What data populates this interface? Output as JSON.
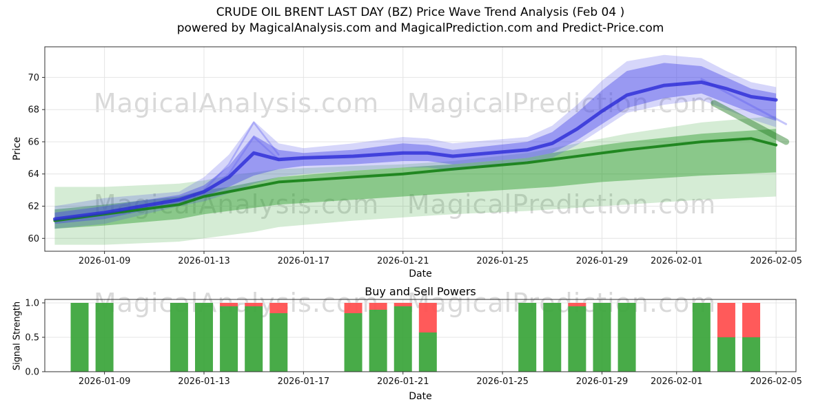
{
  "header": {
    "title_line1": "CRUDE OIL BRENT LAST DAY (BZ) Price Wave Trend Analysis (Feb 04 )",
    "title_line2": "powered by MagicalAnalysis.com and MagicalPrediction.com and Predict-Price.com"
  },
  "watermarks": {
    "analysis": "MagicalAnalysis.com",
    "prediction": "MagicalPrediction.com"
  },
  "chart_data": [
    {
      "type": "area",
      "title": "CRUDE OIL BRENT LAST DAY (BZ) Price Wave Trend Analysis (Feb 04 )",
      "xlabel": "Date",
      "ylabel": "Price",
      "x_base_date": "2026-01-07",
      "xlim_days": [
        -0.4,
        29.8
      ],
      "ylim": [
        59.2,
        71.9
      ],
      "grid": true,
      "yticks": [
        {
          "v": 60,
          "label": "60"
        },
        {
          "v": 62,
          "label": "62"
        },
        {
          "v": 64,
          "label": "64"
        },
        {
          "v": 66,
          "label": "66"
        },
        {
          "v": 68,
          "label": "68"
        },
        {
          "v": 70,
          "label": "70"
        }
      ],
      "xticks": [
        {
          "day": 2,
          "label": "2026-01-09"
        },
        {
          "day": 6,
          "label": "2026-01-13"
        },
        {
          "day": 10,
          "label": "2026-01-17"
        },
        {
          "day": 14,
          "label": "2026-01-21"
        },
        {
          "day": 18,
          "label": "2026-01-25"
        },
        {
          "day": 22,
          "label": "2026-01-29"
        },
        {
          "day": 25,
          "label": "2026-02-01"
        },
        {
          "day": 29,
          "label": "2026-02-05"
        }
      ],
      "bands": [
        {
          "name": "green-outer-band",
          "color": "#2f9e2f",
          "opacity": 0.2,
          "days": [
            0,
            2,
            5,
            6,
            7,
            8,
            9,
            12,
            14,
            16,
            19,
            20,
            22,
            23,
            26,
            29
          ],
          "low": [
            59.6,
            59.6,
            59.8,
            60.0,
            60.2,
            60.4,
            60.7,
            61.1,
            61.3,
            61.5,
            61.7,
            61.8,
            62.0,
            62.1,
            62.4,
            62.6
          ],
          "high": [
            63.2,
            63.2,
            63.4,
            63.6,
            63.9,
            64.1,
            64.3,
            64.5,
            64.6,
            64.8,
            65.3,
            65.6,
            66.2,
            66.5,
            67.2,
            67.6
          ]
        },
        {
          "name": "green-inner-band",
          "color": "#2f9e2f",
          "opacity": 0.45,
          "days": [
            0,
            2,
            5,
            6,
            7,
            8,
            9,
            12,
            14,
            16,
            19,
            20,
            22,
            23,
            26,
            29
          ],
          "low": [
            60.6,
            60.8,
            61.2,
            61.5,
            61.7,
            61.9,
            62.1,
            62.4,
            62.6,
            62.8,
            63.1,
            63.2,
            63.5,
            63.6,
            63.9,
            64.1
          ],
          "high": [
            61.8,
            62.1,
            62.6,
            63.0,
            63.2,
            63.5,
            63.8,
            64.2,
            64.4,
            64.6,
            65.0,
            65.3,
            65.8,
            66.0,
            66.5,
            66.8
          ]
        },
        {
          "name": "blue-outer-band",
          "color": "#4646e8",
          "opacity": 0.22,
          "days": [
            0,
            2,
            5,
            6,
            7,
            8,
            9,
            10,
            12,
            14,
            15,
            16,
            19,
            20,
            21,
            22,
            23,
            24.5,
            26,
            27,
            28,
            29
          ],
          "low": [
            60.6,
            60.9,
            62.0,
            62.3,
            62.8,
            63.4,
            63.8,
            64.0,
            64.2,
            64.4,
            64.4,
            64.2,
            64.7,
            65.0,
            65.8,
            66.8,
            67.8,
            68.3,
            68.6,
            68.0,
            67.4,
            66.9
          ],
          "high": [
            62.0,
            62.5,
            62.9,
            63.8,
            65.2,
            67.3,
            65.9,
            65.6,
            65.9,
            66.3,
            66.2,
            65.9,
            66.3,
            67.0,
            68.3,
            69.8,
            71.0,
            71.4,
            71.2,
            70.4,
            69.7,
            69.4
          ]
        },
        {
          "name": "blue-inner-band",
          "color": "#4646e8",
          "opacity": 0.42,
          "days": [
            0,
            2,
            5,
            6,
            7,
            8,
            9,
            10,
            12,
            14,
            15,
            16,
            19,
            20,
            21,
            22,
            23,
            24.5,
            26,
            27,
            28,
            29
          ],
          "low": [
            60.9,
            61.2,
            62.2,
            62.6,
            63.2,
            63.9,
            64.3,
            64.5,
            64.6,
            64.8,
            64.8,
            64.6,
            65.0,
            65.3,
            66.1,
            67.1,
            68.1,
            68.7,
            69.0,
            68.4,
            67.8,
            67.3
          ],
          "high": [
            61.6,
            62.0,
            62.7,
            63.3,
            64.5,
            66.4,
            65.5,
            65.3,
            65.5,
            65.9,
            65.8,
            65.5,
            66.0,
            66.6,
            67.8,
            69.2,
            70.4,
            70.9,
            70.7,
            70.0,
            69.3,
            69.0
          ]
        }
      ],
      "lines": [
        {
          "name": "green-trend-wedge",
          "color": "#1e7a1e",
          "opacity": 0.45,
          "width": 9,
          "days": [
            26.5,
            29.4
          ],
          "y": [
            68.4,
            66.0
          ]
        },
        {
          "name": "price-history-line",
          "color": "#157f15",
          "opacity": 0.9,
          "width": 4,
          "days": [
            0,
            2,
            5,
            6,
            7,
            8,
            9,
            12,
            14,
            16,
            19,
            20,
            22,
            23,
            26,
            27,
            28,
            29
          ],
          "y": [
            61.1,
            61.5,
            62.1,
            62.6,
            62.9,
            63.2,
            63.5,
            63.8,
            64.0,
            64.3,
            64.7,
            64.9,
            65.3,
            65.5,
            66.0,
            66.1,
            66.2,
            65.8
          ]
        },
        {
          "name": "blue-spike-trace-1",
          "color": "#5a5af0",
          "opacity": 0.35,
          "width": 2.5,
          "days": [
            6,
            7,
            8,
            9
          ],
          "y": [
            63.0,
            64.6,
            67.2,
            65.2
          ]
        },
        {
          "name": "blue-spike-trace-2",
          "color": "#5a5af0",
          "opacity": 0.3,
          "width": 2.5,
          "days": [
            6,
            7,
            8,
            9
          ],
          "y": [
            62.8,
            64.0,
            66.3,
            64.9
          ]
        },
        {
          "name": "blue-end-trace",
          "color": "#5a5af0",
          "opacity": 0.35,
          "width": 3,
          "days": [
            26,
            29.4
          ],
          "y": [
            69.9,
            67.1
          ]
        },
        {
          "name": "prediction-line",
          "color": "#2b2bd6",
          "opacity": 0.8,
          "width": 5,
          "days": [
            0,
            2,
            5,
            6,
            7,
            8,
            9,
            10,
            12,
            14,
            15,
            16,
            19,
            20,
            21,
            22,
            23,
            24.5,
            26,
            27,
            28,
            29
          ],
          "y": [
            61.2,
            61.6,
            62.4,
            62.9,
            63.8,
            65.3,
            64.9,
            65.0,
            65.1,
            65.3,
            65.3,
            65.1,
            65.5,
            65.9,
            66.8,
            67.9,
            68.9,
            69.5,
            69.7,
            69.3,
            68.8,
            68.6
          ]
        }
      ]
    },
    {
      "type": "bar",
      "title": "Buy and Sell Powers",
      "xlabel": "Date",
      "ylabel": "Signal Strength",
      "ylim": [
        0,
        1.05
      ],
      "grid": true,
      "colors": {
        "buy": "#3aa53a",
        "sell": "#ff4d4d"
      },
      "yticks": [
        {
          "v": 0.0,
          "label": "0.0"
        },
        {
          "v": 0.5,
          "label": "0.5"
        },
        {
          "v": 1.0,
          "label": "1.0"
        }
      ],
      "xticks": [
        {
          "day": 2,
          "label": "2026-01-09"
        },
        {
          "day": 6,
          "label": "2026-01-13"
        },
        {
          "day": 10,
          "label": "2026-01-17"
        },
        {
          "day": 14,
          "label": "2026-01-21"
        },
        {
          "day": 18,
          "label": "2026-01-25"
        },
        {
          "day": 22,
          "label": "2026-01-29"
        },
        {
          "day": 25,
          "label": "2026-02-01"
        },
        {
          "day": 29,
          "label": "2026-02-05"
        }
      ],
      "bars": [
        {
          "date": "2026-01-08",
          "day": 1,
          "buy": 1.0,
          "sell": 0.0
        },
        {
          "date": "2026-01-09",
          "day": 2,
          "buy": 1.0,
          "sell": 0.0
        },
        {
          "date": "2026-01-12",
          "day": 5,
          "buy": 1.0,
          "sell": 0.0
        },
        {
          "date": "2026-01-13",
          "day": 6,
          "buy": 1.0,
          "sell": 0.0
        },
        {
          "date": "2026-01-14",
          "day": 7,
          "buy": 0.95,
          "sell": 0.05
        },
        {
          "date": "2026-01-15",
          "day": 8,
          "buy": 0.95,
          "sell": 0.05
        },
        {
          "date": "2026-01-16",
          "day": 9,
          "buy": 0.85,
          "sell": 0.15
        },
        {
          "date": "2026-01-19",
          "day": 12,
          "buy": 0.85,
          "sell": 0.15
        },
        {
          "date": "2026-01-20",
          "day": 13,
          "buy": 0.9,
          "sell": 0.1
        },
        {
          "date": "2026-01-21",
          "day": 14,
          "buy": 0.95,
          "sell": 0.05
        },
        {
          "date": "2026-01-22",
          "day": 15,
          "buy": 0.57,
          "sell": 0.43
        },
        {
          "date": "2026-01-26",
          "day": 19,
          "buy": 1.0,
          "sell": 0.0
        },
        {
          "date": "2026-01-27",
          "day": 20,
          "buy": 1.0,
          "sell": 0.0
        },
        {
          "date": "2026-01-28",
          "day": 21,
          "buy": 0.95,
          "sell": 0.05
        },
        {
          "date": "2026-01-29",
          "day": 22,
          "buy": 1.0,
          "sell": 0.0
        },
        {
          "date": "2026-01-30",
          "day": 23,
          "buy": 1.0,
          "sell": 0.0
        },
        {
          "date": "2026-02-02",
          "day": 26,
          "buy": 1.0,
          "sell": 0.0
        },
        {
          "date": "2026-02-03",
          "day": 27,
          "buy": 0.5,
          "sell": 0.5
        },
        {
          "date": "2026-02-04",
          "day": 28,
          "buy": 0.5,
          "sell": 0.5
        }
      ]
    }
  ]
}
